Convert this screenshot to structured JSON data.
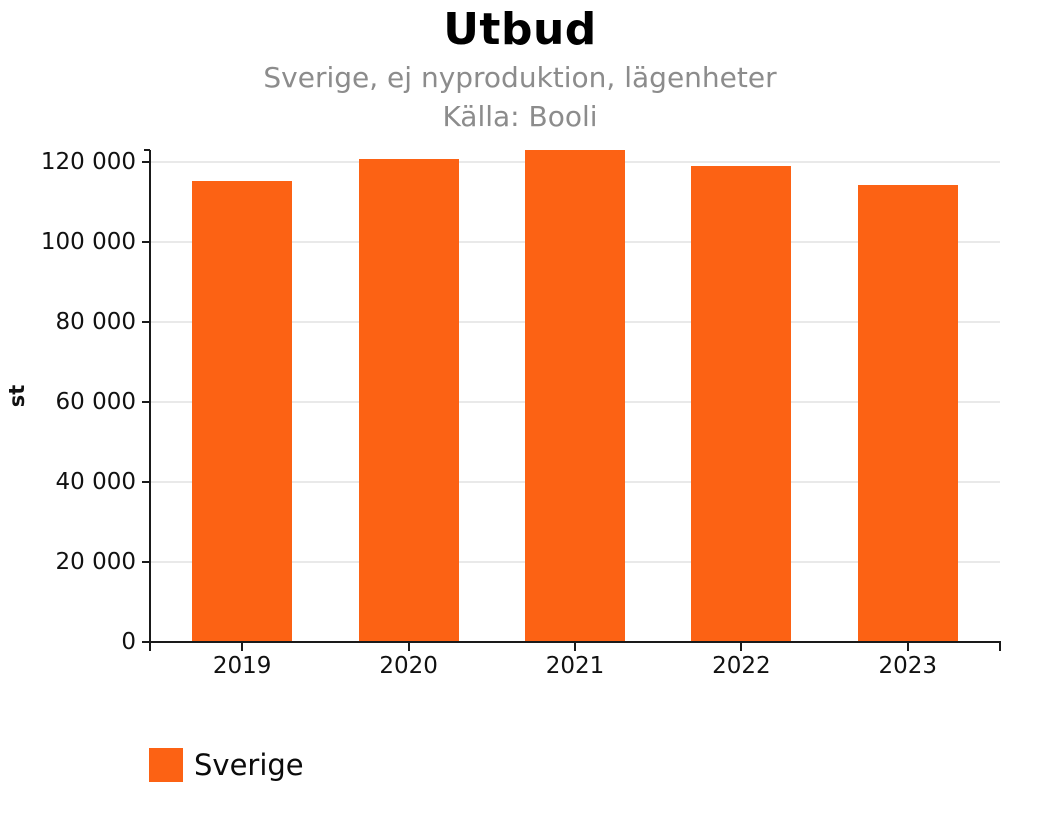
{
  "chart_data": {
    "type": "bar",
    "title": "Utbud",
    "subtitle": "Sverige, ej nyproduktion, lägenheter",
    "source": "Källa: Booli",
    "categories": [
      "2019",
      "2020",
      "2021",
      "2022",
      "2023"
    ],
    "series": [
      {
        "name": "Sverige",
        "color": "#fc6214",
        "values": [
          115200,
          120700,
          123000,
          119000,
          114200
        ]
      }
    ],
    "xlabel": "",
    "ylabel": "st",
    "ylim": [
      0,
      120000
    ],
    "yticks": [
      0,
      20000,
      40000,
      60000,
      80000,
      100000,
      120000
    ],
    "ytick_labels": [
      "0",
      "20 000",
      "40 000",
      "60 000",
      "80 000",
      "100 000",
      "120 000"
    ],
    "grid": true,
    "legend_position": "bottom-left"
  },
  "style": {
    "bar_color": "#fc6214",
    "title_color": "#000000",
    "subtitle_color": "#8c8c8c",
    "axis_color": "#111111",
    "axis_line_color": "#1a1a1a",
    "gridline_color": "#e9e9e9",
    "background_color": "#ffffff"
  }
}
